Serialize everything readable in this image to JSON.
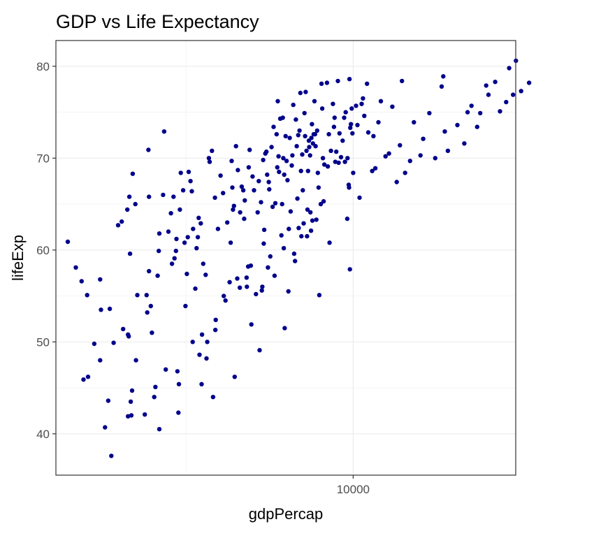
{
  "chart_data": {
    "type": "scatter",
    "title": "GDP vs Life Expectancy",
    "xlabel": "gdpPercap",
    "ylabel": "lifeExp",
    "x_scale": "log10",
    "xlim": [
      1290,
      30650
    ],
    "ylim": [
      35.5,
      82.8
    ],
    "x_ticks": [
      10000
    ],
    "x_tick_labels": [
      "10000"
    ],
    "y_ticks": [
      40,
      50,
      60,
      70,
      80
    ],
    "y_tick_labels": [
      "40",
      "50",
      "60",
      "70",
      "80"
    ],
    "grid": true,
    "legend": "none",
    "point_color": "#00008B",
    "points": [
      [
        1400,
        60.9
      ],
      [
        1480,
        58.1
      ],
      [
        1540,
        56.6
      ],
      [
        1600,
        55.1
      ],
      [
        1560,
        45.9
      ],
      [
        1610,
        46.2
      ],
      [
        1680,
        49.8
      ],
      [
        1750,
        56.8
      ],
      [
        1760,
        53.5
      ],
      [
        1750,
        48.0
      ],
      [
        1810,
        40.7
      ],
      [
        1850,
        43.6
      ],
      [
        1870,
        53.6
      ],
      [
        1890,
        37.6
      ],
      [
        1920,
        49.9
      ],
      [
        1980,
        62.7
      ],
      [
        2030,
        63.1
      ],
      [
        2050,
        51.4
      ],
      [
        2120,
        50.8
      ],
      [
        2130,
        50.6
      ],
      [
        2120,
        41.9
      ],
      [
        2110,
        64.4
      ],
      [
        2140,
        65.8
      ],
      [
        2150,
        59.6
      ],
      [
        2160,
        43.5
      ],
      [
        2180,
        44.7
      ],
      [
        2170,
        42.0
      ],
      [
        2190,
        68.3
      ],
      [
        2230,
        65.0
      ],
      [
        2240,
        48.0
      ],
      [
        2260,
        55.1
      ],
      [
        2380,
        42.1
      ],
      [
        2410,
        55.1
      ],
      [
        2420,
        53.2
      ],
      [
        2440,
        70.9
      ],
      [
        2450,
        57.7
      ],
      [
        2450,
        65.8
      ],
      [
        2480,
        53.9
      ],
      [
        2500,
        51.0
      ],
      [
        2540,
        44.0
      ],
      [
        2560,
        45.1
      ],
      [
        2600,
        57.2
      ],
      [
        2620,
        59.9
      ],
      [
        2630,
        61.8
      ],
      [
        2630,
        40.5
      ],
      [
        2720,
        72.9
      ],
      [
        2700,
        66.0
      ],
      [
        2750,
        47.0
      ],
      [
        2800,
        62.0
      ],
      [
        2850,
        64.0
      ],
      [
        2870,
        58.5
      ],
      [
        2900,
        65.8
      ],
      [
        2920,
        59.1
      ],
      [
        2950,
        59.9
      ],
      [
        2960,
        61.2
      ],
      [
        2980,
        46.8
      ],
      [
        3000,
        42.3
      ],
      [
        3010,
        45.4
      ],
      [
        3030,
        64.4
      ],
      [
        3050,
        68.4
      ],
      [
        3100,
        66.5
      ],
      [
        3130,
        60.8
      ],
      [
        3150,
        53.9
      ],
      [
        3180,
        57.4
      ],
      [
        3200,
        61.4
      ],
      [
        3220,
        68.5
      ],
      [
        3260,
        67.5
      ],
      [
        3290,
        66.4
      ],
      [
        3310,
        50.0
      ],
      [
        3320,
        62.3
      ],
      [
        3370,
        55.8
      ],
      [
        3400,
        60.2
      ],
      [
        3430,
        61.4
      ],
      [
        3450,
        63.5
      ],
      [
        3470,
        48.6
      ],
      [
        3500,
        62.9
      ],
      [
        3520,
        45.4
      ],
      [
        3530,
        50.8
      ],
      [
        3560,
        58.5
      ],
      [
        3620,
        57.3
      ],
      [
        3640,
        48.2
      ],
      [
        3660,
        50.0
      ],
      [
        3700,
        70.0
      ],
      [
        3720,
        69.6
      ],
      [
        3780,
        70.8
      ],
      [
        3810,
        44.0
      ],
      [
        3860,
        65.7
      ],
      [
        3870,
        51.3
      ],
      [
        3880,
        52.4
      ],
      [
        3940,
        62.3
      ],
      [
        4010,
        68.1
      ],
      [
        4080,
        66.2
      ],
      [
        4100,
        55.0
      ],
      [
        4150,
        54.5
      ],
      [
        4200,
        63.0
      ],
      [
        4270,
        56.5
      ],
      [
        4300,
        60.8
      ],
      [
        4330,
        69.7
      ],
      [
        4350,
        66.8
      ],
      [
        4370,
        64.4
      ],
      [
        4400,
        64.8
      ],
      [
        4420,
        46.2
      ],
      [
        4460,
        71.3
      ],
      [
        4500,
        56.9
      ],
      [
        4520,
        68.7
      ],
      [
        4580,
        55.9
      ],
      [
        4590,
        64.1
      ],
      [
        4640,
        66.9
      ],
      [
        4690,
        66.5
      ],
      [
        4720,
        63.4
      ],
      [
        4740,
        65.4
      ],
      [
        4800,
        57.0
      ],
      [
        4810,
        56.0
      ],
      [
        4850,
        58.2
      ],
      [
        4870,
        69.0
      ],
      [
        4900,
        70.9
      ],
      [
        4940,
        58.3
      ],
      [
        4960,
        51.9
      ],
      [
        5000,
        68.0
      ],
      [
        5050,
        66.5
      ],
      [
        5120,
        55.2
      ],
      [
        5180,
        64.1
      ],
      [
        5220,
        67.5
      ],
      [
        5250,
        49.1
      ],
      [
        5300,
        65.2
      ],
      [
        5330,
        55.6
      ],
      [
        5350,
        56.0
      ],
      [
        5380,
        69.8
      ],
      [
        5400,
        60.7
      ],
      [
        5420,
        62.2
      ],
      [
        5460,
        70.5
      ],
      [
        5500,
        70.7
      ],
      [
        5530,
        68.2
      ],
      [
        5560,
        58.1
      ],
      [
        5590,
        67.4
      ],
      [
        5610,
        66.6
      ],
      [
        5650,
        59.3
      ],
      [
        5700,
        71.2
      ],
      [
        5740,
        64.7
      ],
      [
        5780,
        73.4
      ],
      [
        5820,
        57.2
      ],
      [
        5850,
        65.1
      ],
      [
        5900,
        72.6
      ],
      [
        5930,
        69.0
      ],
      [
        5950,
        76.2
      ],
      [
        5980,
        70.2
      ],
      [
        6000,
        68.5
      ],
      [
        6050,
        74.3
      ],
      [
        6100,
        61.6
      ],
      [
        6130,
        65.0
      ],
      [
        6160,
        74.4
      ],
      [
        6180,
        70.0
      ],
      [
        6200,
        60.2
      ],
      [
        6220,
        68.2
      ],
      [
        6240,
        51.5
      ],
      [
        6280,
        72.4
      ],
      [
        6320,
        69.7
      ],
      [
        6360,
        67.6
      ],
      [
        6400,
        55.5
      ],
      [
        6420,
        62.3
      ],
      [
        6460,
        72.2
      ],
      [
        6500,
        64.2
      ],
      [
        6550,
        69.2
      ],
      [
        6580,
        70.3
      ],
      [
        6620,
        75.8
      ],
      [
        6660,
        59.6
      ],
      [
        6700,
        58.8
      ],
      [
        6740,
        74.2
      ],
      [
        6780,
        71.3
      ],
      [
        6810,
        65.6
      ],
      [
        6850,
        72.5
      ],
      [
        6870,
        62.4
      ],
      [
        6910,
        73.0
      ],
      [
        6950,
        77.1
      ],
      [
        6980,
        68.6
      ],
      [
        7000,
        61.5
      ],
      [
        7040,
        70.4
      ],
      [
        7070,
        66.5
      ],
      [
        7110,
        62.9
      ],
      [
        7150,
        74.9
      ],
      [
        7180,
        72.4
      ],
      [
        7210,
        77.2
      ],
      [
        7250,
        70.8
      ],
      [
        7280,
        61.5
      ],
      [
        7300,
        64.4
      ],
      [
        7330,
        68.6
      ],
      [
        7370,
        71.9
      ],
      [
        7390,
        71.2
      ],
      [
        7430,
        70.3
      ],
      [
        7450,
        64.1
      ],
      [
        7480,
        62.1
      ],
      [
        7500,
        72.2
      ],
      [
        7530,
        73.7
      ],
      [
        7550,
        63.2
      ],
      [
        7580,
        71.6
      ],
      [
        7620,
        72.6
      ],
      [
        7660,
        76.2
      ],
      [
        7690,
        72.6
      ],
      [
        7720,
        71.3
      ],
      [
        7760,
        63.3
      ],
      [
        7800,
        73.0
      ],
      [
        7840,
        68.4
      ],
      [
        7880,
        66.8
      ],
      [
        7920,
        55.1
      ],
      [
        8000,
        65.0
      ],
      [
        8040,
        78.1
      ],
      [
        8080,
        75.4
      ],
      [
        8120,
        70.0
      ],
      [
        8160,
        65.3
      ],
      [
        8200,
        69.3
      ],
      [
        8350,
        78.2
      ],
      [
        8400,
        69.1
      ],
      [
        8460,
        72.6
      ],
      [
        8500,
        60.8
      ],
      [
        8580,
        70.8
      ],
      [
        8700,
        75.9
      ],
      [
        8760,
        73.4
      ],
      [
        8800,
        74.4
      ],
      [
        8840,
        69.6
      ],
      [
        8900,
        70.7
      ],
      [
        9000,
        78.4
      ],
      [
        9050,
        69.5
      ],
      [
        9100,
        72.7
      ],
      [
        9200,
        70.1
      ],
      [
        9300,
        71.9
      ],
      [
        9400,
        74.4
      ],
      [
        9450,
        69.6
      ],
      [
        9500,
        75.0
      ],
      [
        9600,
        63.4
      ],
      [
        9620,
        70.0
      ],
      [
        9700,
        67.1
      ],
      [
        9720,
        66.8
      ],
      [
        9750,
        78.6
      ],
      [
        9780,
        57.9
      ],
      [
        9800,
        73.3
      ],
      [
        9850,
        73.7
      ],
      [
        9900,
        75.4
      ],
      [
        9950,
        72.7
      ],
      [
        10000,
        68.4
      ],
      [
        10200,
        75.7
      ],
      [
        10300,
        73.6
      ],
      [
        10450,
        65.7
      ],
      [
        10600,
        75.9
      ],
      [
        10700,
        76.5
      ],
      [
        10800,
        74.6
      ],
      [
        11000,
        78.1
      ],
      [
        11100,
        72.8
      ],
      [
        11400,
        68.6
      ],
      [
        11500,
        72.4
      ],
      [
        11650,
        68.9
      ],
      [
        11900,
        73.9
      ],
      [
        12100,
        76.2
      ],
      [
        12500,
        70.2
      ],
      [
        12800,
        70.5
      ],
      [
        13100,
        75.6
      ],
      [
        13500,
        67.4
      ],
      [
        13800,
        71.4
      ],
      [
        14000,
        78.4
      ],
      [
        14300,
        68.4
      ],
      [
        14800,
        69.7
      ],
      [
        15200,
        73.9
      ],
      [
        15900,
        70.3
      ],
      [
        16200,
        72.1
      ],
      [
        16900,
        74.9
      ],
      [
        17600,
        70.0
      ],
      [
        18400,
        77.8
      ],
      [
        18600,
        78.9
      ],
      [
        18800,
        72.9
      ],
      [
        19200,
        70.8
      ],
      [
        20500,
        73.6
      ],
      [
        21500,
        71.6
      ],
      [
        22000,
        75.0
      ],
      [
        22600,
        75.7
      ],
      [
        23500,
        73.4
      ],
      [
        24000,
        74.9
      ],
      [
        25000,
        77.9
      ],
      [
        25400,
        76.9
      ],
      [
        26600,
        78.3
      ],
      [
        27500,
        75.1
      ],
      [
        28700,
        76.1
      ],
      [
        29300,
        79.8
      ],
      [
        30100,
        76.9
      ],
      [
        30700,
        80.6
      ],
      [
        31800,
        77.3
      ],
      [
        33600,
        78.2
      ]
    ]
  }
}
